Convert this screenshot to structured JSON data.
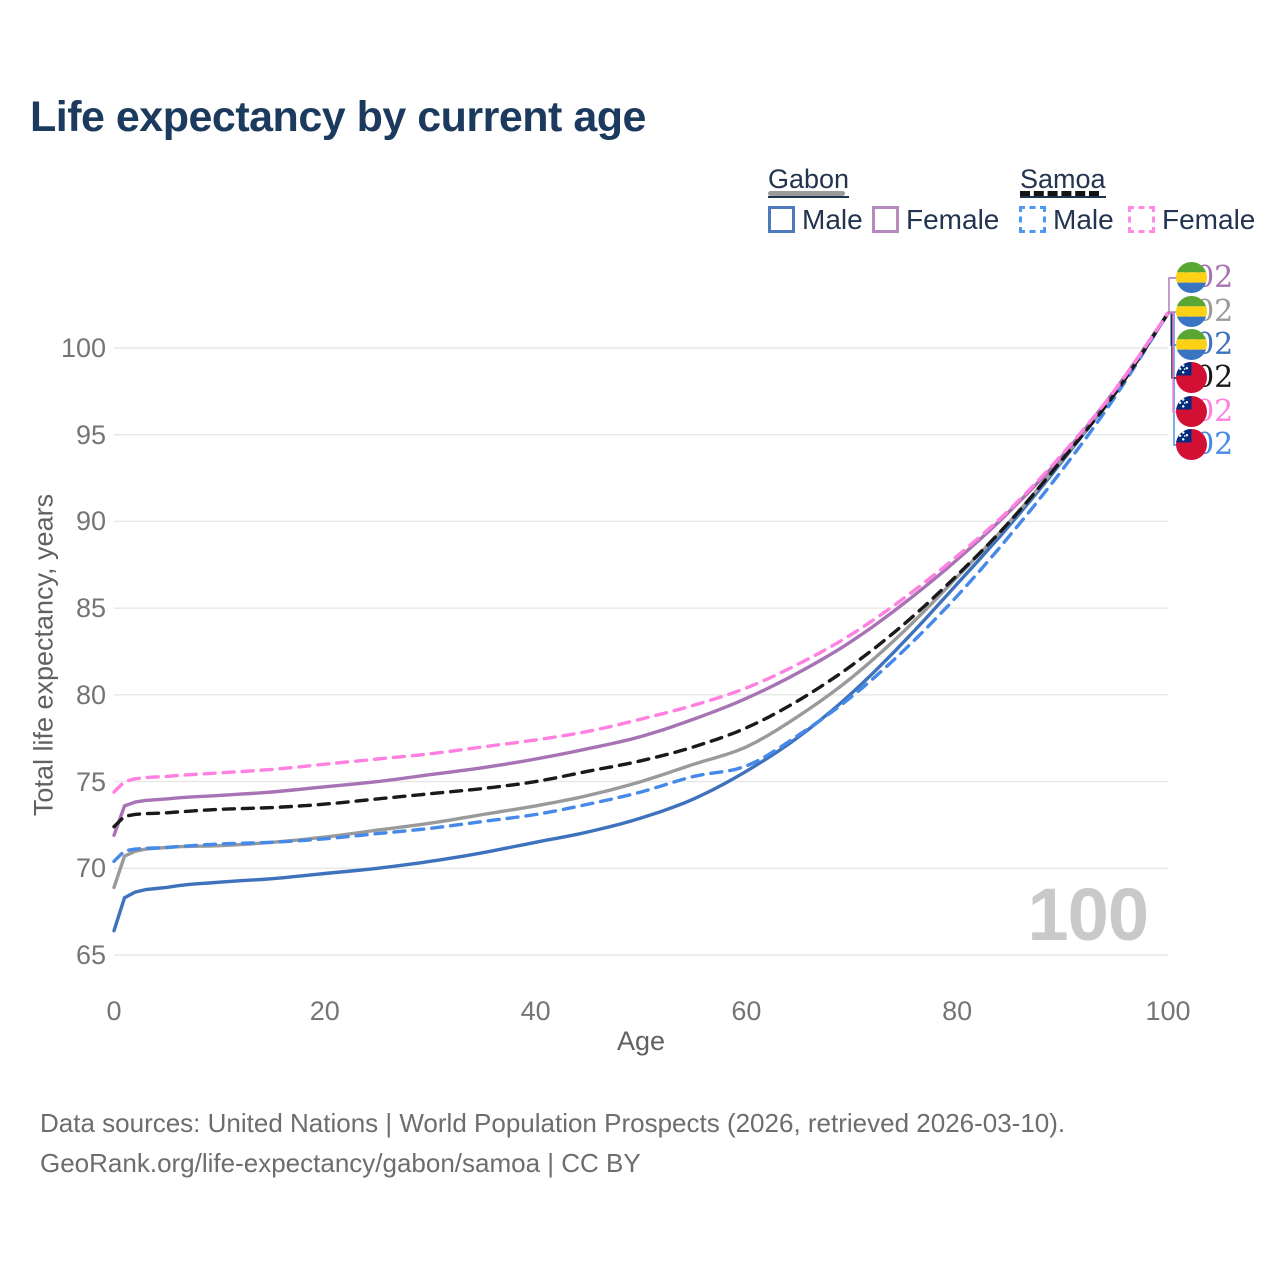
{
  "title": "Life expectancy by current age",
  "legend": {
    "groups": [
      {
        "label": "Gabon",
        "line_style": "solid",
        "bar_color": "#9b9b9b",
        "items": [
          {
            "label": "Male",
            "color": "#4e79ba",
            "dashed": false
          },
          {
            "label": "Female",
            "color": "#b58abc",
            "dashed": false
          }
        ]
      },
      {
        "label": "Samoa",
        "line_style": "dashed",
        "bar_color": "#141414",
        "items": [
          {
            "label": "Male",
            "color": "#4d97f7",
            "dashed": true
          },
          {
            "label": "Female",
            "color": "#ff8ae4",
            "dashed": true
          }
        ]
      }
    ]
  },
  "chart_data": {
    "type": "line",
    "title": "Life expectancy by current age",
    "xlabel": "Age",
    "ylabel": "Total life expectancy, years",
    "x_ticks": [
      0,
      20,
      40,
      60,
      80,
      100
    ],
    "y_ticks": [
      65,
      70,
      75,
      80,
      85,
      90,
      95,
      100
    ],
    "xlim": [
      0,
      100
    ],
    "ylim": [
      64.5,
      103
    ],
    "grid": true,
    "watermark": "100",
    "ages": [
      0,
      1,
      5,
      10,
      15,
      20,
      25,
      30,
      35,
      40,
      45,
      50,
      55,
      60,
      65,
      70,
      75,
      80,
      85,
      90,
      95,
      100
    ],
    "series": [
      {
        "name": "Gabon Male",
        "country": "Gabon",
        "sex": "Male",
        "flag": "gabon",
        "color": "#3e72bd",
        "dashed": false,
        "end_label": "102",
        "label_row": 2,
        "values": [
          66.4,
          68.3,
          68.9,
          69.2,
          69.4,
          69.7,
          70.0,
          70.4,
          70.9,
          71.5,
          72.1,
          72.9,
          74.0,
          75.6,
          77.6,
          80.1,
          83.1,
          86.4,
          89.8,
          93.5,
          97.5,
          102
        ]
      },
      {
        "name": "Gabon Total",
        "country": "Gabon",
        "sex": "Both",
        "flag": "gabon",
        "color": "#9a9a9a",
        "dashed": false,
        "end_label": "102",
        "label_row": 1,
        "values": [
          68.9,
          70.7,
          71.2,
          71.3,
          71.5,
          71.8,
          72.2,
          72.6,
          73.1,
          73.6,
          74.2,
          75.0,
          76.0,
          77.0,
          78.8,
          81.0,
          83.7,
          86.8,
          90.0,
          93.6,
          97.5,
          102
        ]
      },
      {
        "name": "Gabon Female",
        "country": "Gabon",
        "sex": "Female",
        "flag": "gabon",
        "color": "#a873b4",
        "dashed": false,
        "end_label": "102",
        "label_row": 0,
        "values": [
          71.9,
          73.6,
          74.0,
          74.2,
          74.4,
          74.7,
          75.0,
          75.4,
          75.8,
          76.3,
          76.9,
          77.6,
          78.6,
          79.8,
          81.3,
          83.1,
          85.3,
          87.8,
          90.6,
          93.8,
          97.6,
          102
        ]
      },
      {
        "name": "Samoa Male",
        "country": "Samoa",
        "sex": "Male",
        "flag": "samoa",
        "color": "#4689e8",
        "dashed": true,
        "end_label": "102",
        "label_row": 5,
        "values": [
          70.4,
          71.0,
          71.2,
          71.4,
          71.5,
          71.7,
          72.0,
          72.3,
          72.7,
          73.1,
          73.7,
          74.4,
          75.3,
          75.9,
          77.7,
          79.9,
          82.6,
          85.7,
          89.2,
          93.0,
          97.2,
          102
        ]
      },
      {
        "name": "Samoa Total",
        "country": "Samoa",
        "sex": "Both",
        "flag": "samoa",
        "color": "#1a1a1a",
        "dashed": true,
        "end_label": "102",
        "label_row": 3,
        "values": [
          72.4,
          73.0,
          73.2,
          73.4,
          73.5,
          73.7,
          74.0,
          74.3,
          74.6,
          75.0,
          75.6,
          76.2,
          77.0,
          78.1,
          79.7,
          81.7,
          84.1,
          86.9,
          90.0,
          93.6,
          97.4,
          102
        ]
      },
      {
        "name": "Samoa Female",
        "country": "Samoa",
        "sex": "Female",
        "flag": "samoa",
        "color": "#ff80e0",
        "dashed": true,
        "end_label": "102",
        "label_row": 4,
        "values": [
          74.4,
          75.0,
          75.3,
          75.5,
          75.7,
          76.0,
          76.3,
          76.6,
          77.0,
          77.4,
          77.9,
          78.6,
          79.4,
          80.4,
          81.8,
          83.5,
          85.6,
          88.0,
          90.7,
          93.9,
          97.6,
          102
        ]
      }
    ],
    "flag_colors": {
      "gabon": {
        "green": "#5aa633",
        "yellow": "#fcd116",
        "blue": "#3a75c4"
      },
      "samoa": {
        "red": "#d21034",
        "blue": "#002b7f",
        "stars": "#ffffff"
      }
    },
    "grid_color": "#e7e7e7"
  },
  "footer": {
    "line1": "Data sources: United Nations | World Population Prospects (2026, retrieved 2026-03-10).",
    "line2": "GeoRank.org/life-expectancy/gabon/samoa | CC BY"
  }
}
